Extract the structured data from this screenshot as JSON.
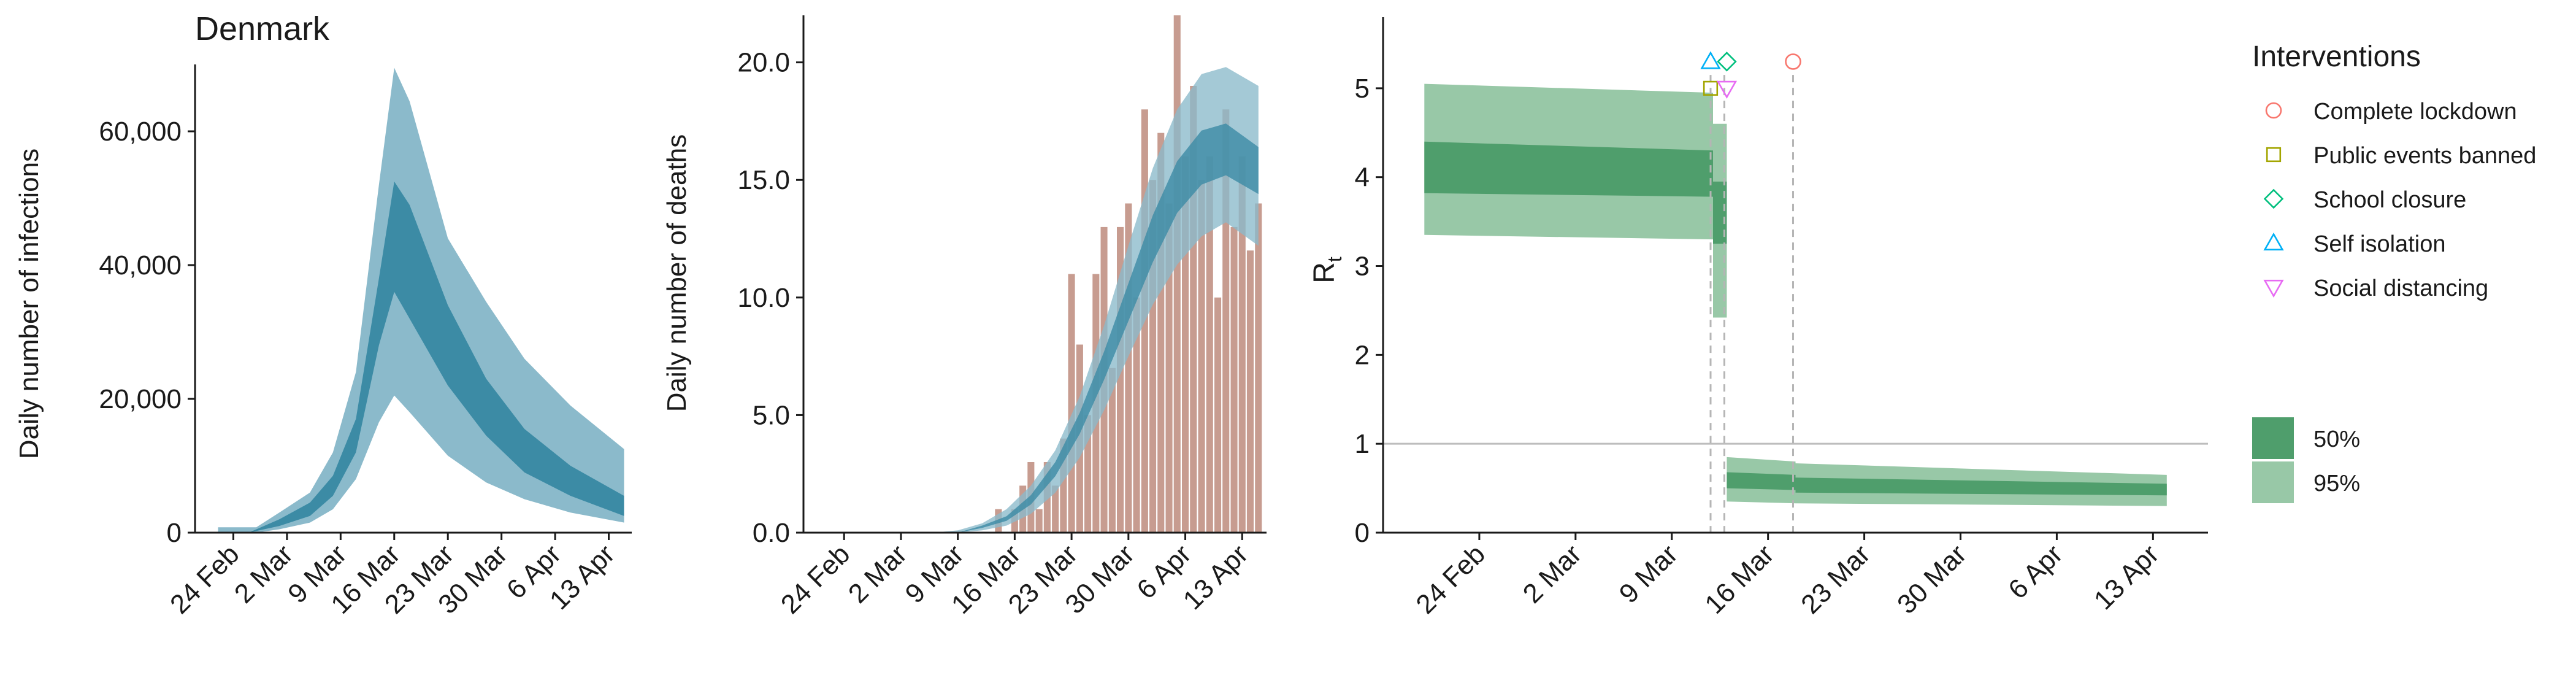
{
  "chart_data": [
    {
      "type": "area",
      "title": "Denmark",
      "xlabel": "",
      "ylabel": "Daily number of infections",
      "xlim": [
        "2020-02-19",
        "2020-04-16"
      ],
      "ylim": [
        0,
        70000
      ],
      "yticks": [
        0,
        20000,
        40000,
        60000
      ],
      "ytick_labels": [
        "0",
        "20,000",
        "40,000",
        "60,000"
      ],
      "xticks": [
        "2020-02-24",
        "2020-03-02",
        "2020-03-09",
        "2020-03-16",
        "2020-03-23",
        "2020-03-30",
        "2020-04-06",
        "2020-04-13"
      ],
      "xtick_labels": [
        "24 Feb",
        "2 Mar",
        "9 Mar",
        "16 Mar",
        "23 Mar",
        "30 Mar",
        "6 Apr",
        "13 Apr"
      ],
      "grid": false,
      "bands": [
        {
          "level": "95%",
          "color": "#8bbacb",
          "x": [
            "2020-02-22",
            "2020-02-27",
            "2020-03-01",
            "2020-03-05",
            "2020-03-08",
            "2020-03-11",
            "2020-03-14",
            "2020-03-16",
            "2020-03-18",
            "2020-03-23",
            "2020-03-28",
            "2020-04-02",
            "2020-04-08",
            "2020-04-15"
          ],
          "lower": [
            0,
            0,
            500,
            1500,
            3500,
            8000,
            16500,
            20500,
            18000,
            11500,
            7500,
            5000,
            3000,
            1500
          ],
          "upper": [
            800,
            800,
            3000,
            6000,
            12000,
            24000,
            52000,
            69500,
            64500,
            44000,
            34500,
            26000,
            19000,
            12500
          ]
        },
        {
          "level": "50%",
          "color": "#3c8ba5",
          "x": [
            "2020-02-26",
            "2020-03-01",
            "2020-03-05",
            "2020-03-08",
            "2020-03-11",
            "2020-03-14",
            "2020-03-16",
            "2020-03-18",
            "2020-03-23",
            "2020-03-28",
            "2020-04-02",
            "2020-04-08",
            "2020-04-15"
          ],
          "lower": [
            0,
            1000,
            2500,
            5500,
            12000,
            28000,
            36000,
            32000,
            22000,
            14500,
            9000,
            5500,
            2500
          ],
          "upper": [
            0,
            2000,
            4500,
            8500,
            17000,
            38000,
            52500,
            49000,
            34000,
            23000,
            15500,
            10000,
            5500
          ]
        }
      ]
    },
    {
      "type": "bar",
      "title": "",
      "xlabel": "",
      "ylabel": "Daily number of deaths",
      "xlim": [
        "2020-02-19",
        "2020-04-16"
      ],
      "ylim": [
        0,
        22
      ],
      "yticks": [
        0,
        5,
        10,
        15,
        20
      ],
      "ytick_labels": [
        "0.0",
        "5.0",
        "10.0",
        "15.0",
        "20.0"
      ],
      "xticks": [
        "2020-02-24",
        "2020-03-02",
        "2020-03-09",
        "2020-03-16",
        "2020-03-23",
        "2020-03-30",
        "2020-04-06",
        "2020-04-13"
      ],
      "xtick_labels": [
        "24 Feb",
        "2 Mar",
        "9 Mar",
        "16 Mar",
        "23 Mar",
        "30 Mar",
        "6 Apr",
        "13 Apr"
      ],
      "grid": false,
      "bar_color": "#c79c90",
      "bars": {
        "x": [
          "2020-03-14",
          "2020-03-15",
          "2020-03-16",
          "2020-03-17",
          "2020-03-18",
          "2020-03-19",
          "2020-03-20",
          "2020-03-21",
          "2020-03-22",
          "2020-03-23",
          "2020-03-24",
          "2020-03-25",
          "2020-03-26",
          "2020-03-27",
          "2020-03-28",
          "2020-03-29",
          "2020-03-30",
          "2020-03-31",
          "2020-04-01",
          "2020-04-02",
          "2020-04-03",
          "2020-04-04",
          "2020-04-05",
          "2020-04-06",
          "2020-04-07",
          "2020-04-08",
          "2020-04-09",
          "2020-04-10",
          "2020-04-11",
          "2020-04-12",
          "2020-04-13",
          "2020-04-14",
          "2020-04-15"
        ],
        "values": [
          1,
          0,
          1,
          2,
          3,
          1,
          3,
          2,
          4,
          11,
          8,
          5,
          11,
          13,
          7,
          13,
          14,
          10,
          18,
          15,
          17,
          14,
          22,
          16,
          19,
          15,
          16,
          10,
          18,
          13,
          16,
          12,
          14
        ]
      },
      "bands": [
        {
          "level": "95%",
          "color": "#8bbacb",
          "x": [
            "2020-02-22",
            "2020-03-06",
            "2020-03-09",
            "2020-03-12",
            "2020-03-15",
            "2020-03-18",
            "2020-03-21",
            "2020-03-24",
            "2020-03-27",
            "2020-03-30",
            "2020-04-02",
            "2020-04-05",
            "2020-04-08",
            "2020-04-11",
            "2020-04-15"
          ],
          "lower": [
            0,
            0,
            0,
            0.1,
            0.3,
            0.8,
            1.7,
            3.2,
            5.2,
            7.5,
            9.7,
            11.4,
            12.6,
            13.2,
            12.2
          ],
          "upper": [
            0,
            0,
            0.1,
            0.4,
            1,
            2,
            3.5,
            5.8,
            8.8,
            12.2,
            15.5,
            18,
            19.5,
            19.8,
            19
          ]
        },
        {
          "level": "50%",
          "color": "#3c8ba5",
          "x": [
            "2020-02-22",
            "2020-03-06",
            "2020-03-09",
            "2020-03-12",
            "2020-03-15",
            "2020-03-18",
            "2020-03-21",
            "2020-03-24",
            "2020-03-27",
            "2020-03-30",
            "2020-04-02",
            "2020-04-05",
            "2020-04-08",
            "2020-04-11",
            "2020-04-15"
          ],
          "lower": [
            0,
            0,
            0,
            0.2,
            0.5,
            1.2,
            2.4,
            4.2,
            6.5,
            9,
            11.5,
            13.6,
            14.8,
            15.2,
            14.4
          ],
          "upper": [
            0,
            0,
            0,
            0.3,
            0.7,
            1.6,
            3,
            5.1,
            7.7,
            10.6,
            13.5,
            15.8,
            17.1,
            17.4,
            16.4
          ]
        }
      ]
    },
    {
      "type": "area",
      "title": "",
      "xlabel": "",
      "ylabel_main": "R",
      "ylabel_sub": "t",
      "xlim": [
        "2020-02-17",
        "2020-04-17"
      ],
      "ylim": [
        0,
        5.8
      ],
      "yticks": [
        0,
        1,
        2,
        3,
        4,
        5
      ],
      "ytick_labels": [
        "0",
        "1",
        "2",
        "3",
        "4",
        "5"
      ],
      "xticks": [
        "2020-02-24",
        "2020-03-02",
        "2020-03-09",
        "2020-03-16",
        "2020-03-23",
        "2020-03-30",
        "2020-04-06",
        "2020-04-13"
      ],
      "xtick_labels": [
        "24 Feb",
        "2 Mar",
        "9 Mar",
        "16 Mar",
        "23 Mar",
        "30 Mar",
        "6 Apr",
        "13 Apr"
      ],
      "reference_line": 1,
      "grid": false,
      "rt_segments": [
        {
          "start": "2020-02-20",
          "end": "2020-03-12",
          "ci95": [
            [
              3.35,
              5.05
            ],
            [
              3.3,
              4.95
            ]
          ],
          "ci50": [
            [
              3.82,
              4.4
            ],
            [
              3.78,
              4.3
            ]
          ]
        },
        {
          "start": "2020-03-12",
          "end": "2020-03-13",
          "ci95": [
            [
              2.42,
              4.6
            ],
            [
              2.42,
              4.6
            ]
          ],
          "ci50": [
            [
              3.25,
              3.95
            ],
            [
              3.25,
              3.95
            ]
          ]
        },
        {
          "start": "2020-03-13",
          "end": "2020-03-18",
          "ci95": [
            [
              0.35,
              0.85
            ],
            [
              0.33,
              0.8
            ]
          ],
          "ci50": [
            [
              0.5,
              0.68
            ],
            [
              0.48,
              0.65
            ]
          ]
        },
        {
          "start": "2020-03-18",
          "end": "2020-04-14",
          "ci95": [
            [
              0.33,
              0.78
            ],
            [
              0.3,
              0.65
            ]
          ],
          "ci50": [
            [
              0.45,
              0.62
            ],
            [
              0.42,
              0.55
            ]
          ]
        }
      ],
      "interventions": [
        {
          "name": "Complete lockdown",
          "date": "2020-03-18",
          "marker": "circle",
          "color": "#f8766d",
          "y": 5.3
        },
        {
          "name": "Public events banned",
          "date": "2020-03-12",
          "marker": "square",
          "color": "#a3a500",
          "y": 5.0
        },
        {
          "name": "School closure",
          "date": "2020-03-13",
          "marker": "diamond",
          "color": "#00bf7d",
          "y": 5.3
        },
        {
          "name": "Self isolation",
          "date": "2020-03-12",
          "marker": "triangle-up",
          "color": "#00b0f6",
          "y": 5.3
        },
        {
          "name": "Social distancing",
          "date": "2020-03-13",
          "marker": "triangle-down",
          "color": "#e76bf3",
          "y": 5.0
        }
      ],
      "legend": {
        "placement": "right",
        "title": "Interventions",
        "band_entries": [
          {
            "label": "50%",
            "color": "#4f9e6c"
          },
          {
            "label": "95%",
            "color": "#98c8a7"
          }
        ]
      },
      "colors": {
        "ci95": "#98c8a7",
        "ci50": "#4f9e6c",
        "reference": "#bdbdbd",
        "vline": "#b5b5b5"
      }
    }
  ]
}
